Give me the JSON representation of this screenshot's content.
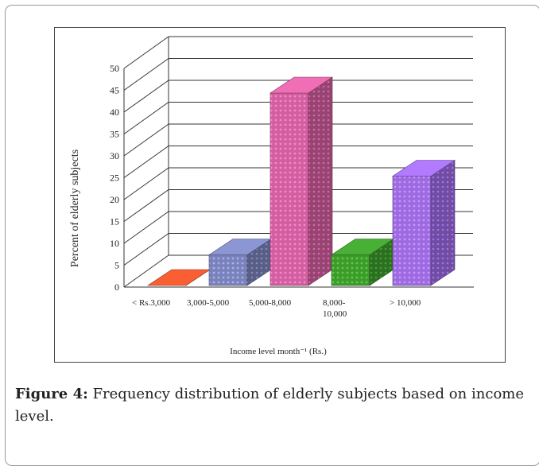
{
  "chart_data": {
    "type": "bar",
    "title": "",
    "ylabel": "Percent of elderly subjects",
    "xlabel": "Income level month⁻¹ (Rs.)",
    "ylim": [
      0,
      50
    ],
    "yticks": [
      "0",
      "5",
      "10",
      "15",
      "20",
      "25",
      "30",
      "35",
      "40",
      "45",
      "50"
    ],
    "categories": [
      "< Rs.3,000",
      "3,000-5,000",
      "5,000-8,000",
      "8,000-10,000",
      "> 10,000"
    ],
    "category_lines": [
      [
        "< Rs.3,000"
      ],
      [
        "3,000-5,000"
      ],
      [
        "5,000-8,000"
      ],
      [
        "8,000-",
        "10,000"
      ],
      [
        "> 10,000"
      ]
    ],
    "values": [
      0,
      7,
      44,
      7,
      25
    ],
    "bar_colors": [
      "#d9532c",
      "#7a82b8",
      "#d0609e",
      "#3f9a2e",
      "#9b6be0"
    ],
    "grid": true,
    "style": "3d"
  },
  "caption": {
    "lead": "Figure 4:",
    "text": "Frequency distribution of elderly subjects based on income level."
  }
}
